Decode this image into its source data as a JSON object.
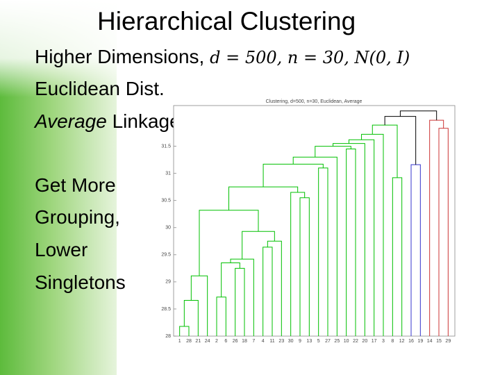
{
  "title": "Hierarchical Clustering",
  "bullets": [
    {
      "text": "Higher Dimensions, ",
      "math": "d = 500, n = 30, N(0, I)"
    },
    {
      "text": "Euclidean Dist."
    },
    {
      "emph": "Average",
      "text": " Linkage"
    },
    {
      "text": "Get More"
    },
    {
      "text": "Grouping,"
    },
    {
      "text": "Lower"
    },
    {
      "text": "Singletons"
    }
  ],
  "chart_data": {
    "type": "dendrogram",
    "title": "Clustering, d=500, n=30, Euclidean, Average",
    "leaves": [
      "1",
      "28",
      "21",
      "24",
      "2",
      "6",
      "26",
      "18",
      "7",
      "4",
      "11",
      "23",
      "30",
      "9",
      "13",
      "5",
      "27",
      "25",
      "10",
      "22",
      "20",
      "17",
      "3",
      "8",
      "12",
      "16",
      "19",
      "14",
      "15",
      "29"
    ],
    "merges": [
      {
        "left": 0,
        "right": 1,
        "height": 28.18,
        "color": "#00c000"
      },
      {
        "left": 30,
        "right": 2,
        "height": 28.66,
        "color": "#00c000"
      },
      {
        "left": 31,
        "right": 3,
        "height": 29.11,
        "color": "#00c000"
      },
      {
        "left": 4,
        "right": 5,
        "height": 28.72,
        "color": "#00c000"
      },
      {
        "left": 6,
        "right": 7,
        "height": 29.25,
        "color": "#00c000"
      },
      {
        "left": 33,
        "right": 34,
        "height": 29.35,
        "color": "#00c000"
      },
      {
        "left": 35,
        "right": 8,
        "height": 29.42,
        "color": "#00c000"
      },
      {
        "left": 9,
        "right": 10,
        "height": 29.64,
        "color": "#00c000"
      },
      {
        "left": 37,
        "right": 11,
        "height": 29.75,
        "color": "#00c000"
      },
      {
        "left": 36,
        "right": 38,
        "height": 29.93,
        "color": "#00c000"
      },
      {
        "left": 32,
        "right": 39,
        "height": 30.32,
        "color": "#00c000"
      },
      {
        "left": 13,
        "right": 14,
        "height": 30.55,
        "color": "#00c000"
      },
      {
        "left": 12,
        "right": 41,
        "height": 30.65,
        "color": "#00c000"
      },
      {
        "left": 40,
        "right": 42,
        "height": 30.75,
        "color": "#00c000"
      },
      {
        "left": 15,
        "right": 16,
        "height": 31.1,
        "color": "#00c000"
      },
      {
        "left": 43,
        "right": 44,
        "height": 31.17,
        "color": "#00c000"
      },
      {
        "left": 45,
        "right": 17,
        "height": 31.3,
        "color": "#00c000"
      },
      {
        "left": 18,
        "right": 19,
        "height": 31.45,
        "color": "#00c000"
      },
      {
        "left": 46,
        "right": 47,
        "height": 31.5,
        "color": "#00c000"
      },
      {
        "left": 48,
        "right": 20,
        "height": 31.55,
        "color": "#00c000"
      },
      {
        "left": 49,
        "right": 21,
        "height": 31.62,
        "color": "#00c000"
      },
      {
        "left": 23,
        "right": 24,
        "height": 30.92,
        "color": "#00c000"
      },
      {
        "left": 50,
        "right": 22,
        "height": 31.72,
        "color": "#00c000"
      },
      {
        "left": 52,
        "right": 51,
        "height": 31.89,
        "color": "#00c000"
      },
      {
        "left": 25,
        "right": 26,
        "height": 31.16,
        "color": "#3333cc"
      },
      {
        "left": 28,
        "right": 29,
        "height": 31.83,
        "color": "#cc3333"
      },
      {
        "left": 27,
        "right": 55,
        "height": 31.98,
        "color": "#cc3333"
      },
      {
        "left": 53,
        "right": 54,
        "height": 32.05,
        "color": "#000000"
      },
      {
        "left": 57,
        "right": 56,
        "height": 32.15,
        "color": "#000000"
      }
    ],
    "ylim": [
      28,
      32.25
    ],
    "yticks": [
      28,
      28.5,
      29,
      29.5,
      30,
      30.5,
      31,
      31.5
    ]
  }
}
